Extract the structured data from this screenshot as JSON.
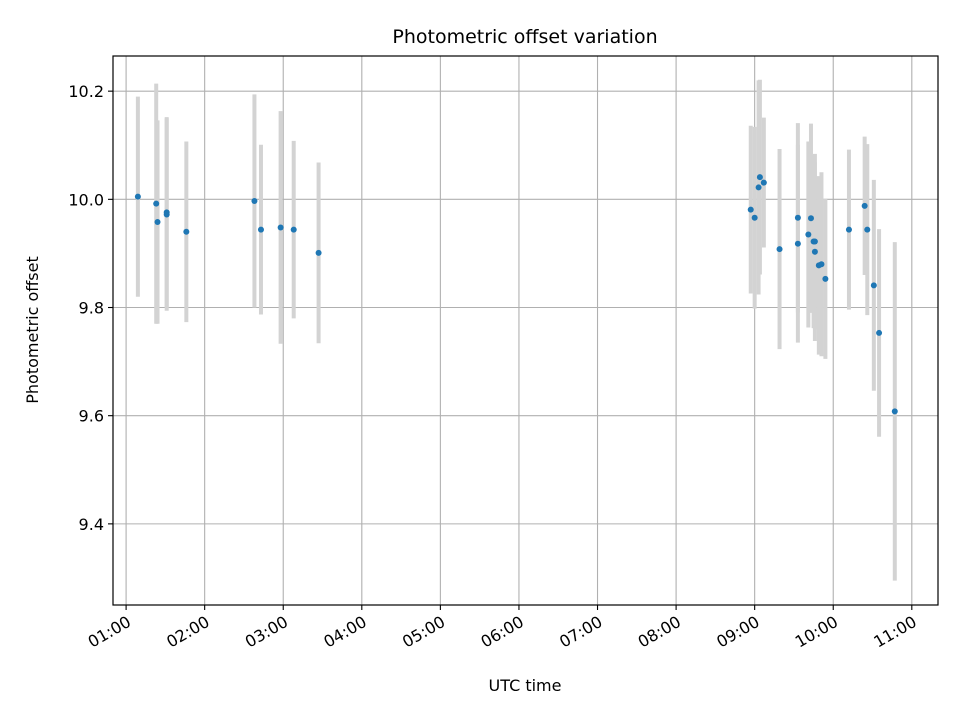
{
  "chart_data": {
    "type": "scatter",
    "title": "Photometric offset variation",
    "xlabel": "UTC time",
    "ylabel": "Photometric offset",
    "x_is_time": true,
    "xlim": [
      "00:50",
      "11:20"
    ],
    "ylim": [
      9.25,
      10.265
    ],
    "xticks": [
      "01:00",
      "02:00",
      "03:00",
      "04:00",
      "05:00",
      "06:00",
      "07:00",
      "08:00",
      "09:00",
      "10:00",
      "11:00"
    ],
    "yticks": [
      9.4,
      9.6,
      9.8,
      10.0,
      10.2
    ],
    "grid": true,
    "marker_color": "#1f77b4",
    "errorbar_color": "#d3d3d3",
    "points": [
      {
        "x": "01:09",
        "y": 10.005,
        "err": 0.185
      },
      {
        "x": "01:23",
        "y": 9.992,
        "err": 0.222
      },
      {
        "x": "01:24",
        "y": 9.958,
        "err": 0.188
      },
      {
        "x": "01:31",
        "y": 9.972,
        "err": 0.178
      },
      {
        "x": "01:31",
        "y": 9.976,
        "err": 0.176
      },
      {
        "x": "01:46",
        "y": 9.94,
        "err": 0.167
      },
      {
        "x": "02:38",
        "y": 9.997,
        "err": 0.197
      },
      {
        "x": "02:43",
        "y": 9.944,
        "err": 0.157
      },
      {
        "x": "02:58",
        "y": 9.948,
        "err": 0.215
      },
      {
        "x": "03:08",
        "y": 9.944,
        "err": 0.164
      },
      {
        "x": "03:27",
        "y": 9.901,
        "err": 0.167
      },
      {
        "x": "08:57",
        "y": 9.981,
        "err": 0.155
      },
      {
        "x": "09:00",
        "y": 9.966,
        "err": 0.168
      },
      {
        "x": "09:03",
        "y": 10.022,
        "err": 0.198
      },
      {
        "x": "09:04",
        "y": 10.041,
        "err": 0.18
      },
      {
        "x": "09:07",
        "y": 10.031,
        "err": 0.12
      },
      {
        "x": "09:19",
        "y": 9.908,
        "err": 0.185
      },
      {
        "x": "09:33",
        "y": 9.966,
        "err": 0.175
      },
      {
        "x": "09:33",
        "y": 9.918,
        "err": 0.183
      },
      {
        "x": "09:41",
        "y": 9.935,
        "err": 0.172
      },
      {
        "x": "09:43",
        "y": 9.965,
        "err": 0.175
      },
      {
        "x": "09:45",
        "y": 9.922,
        "err": 0.16
      },
      {
        "x": "09:46",
        "y": 9.903,
        "err": 0.165
      },
      {
        "x": "09:46",
        "y": 9.922,
        "err": 0.162
      },
      {
        "x": "09:49",
        "y": 9.878,
        "err": 0.165
      },
      {
        "x": "09:51",
        "y": 9.88,
        "err": 0.17
      },
      {
        "x": "09:54",
        "y": 9.853,
        "err": 0.148
      },
      {
        "x": "10:12",
        "y": 9.944,
        "err": 0.148
      },
      {
        "x": "10:24",
        "y": 9.988,
        "err": 0.128
      },
      {
        "x": "10:26",
        "y": 9.944,
        "err": 0.158
      },
      {
        "x": "10:31",
        "y": 9.841,
        "err": 0.195
      },
      {
        "x": "10:35",
        "y": 9.753,
        "err": 0.192
      },
      {
        "x": "10:47",
        "y": 9.608,
        "err": 0.313
      }
    ]
  }
}
